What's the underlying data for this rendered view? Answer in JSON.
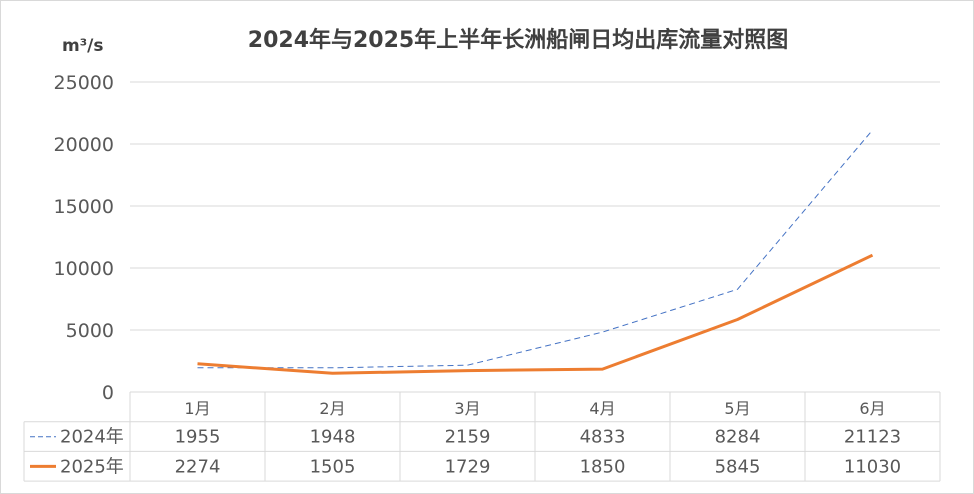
{
  "chart_data": {
    "type": "line",
    "title": "2024年与2025年上半年长洲船闸日均出库流量对照图",
    "ylabel": "m³/s",
    "ylim": [
      0,
      25000
    ],
    "yticks": [
      "0",
      "5000",
      "10000",
      "15000",
      "20000",
      "25000"
    ],
    "categories": [
      "1月",
      "2月",
      "3月",
      "4月",
      "5月",
      "6月"
    ],
    "grid": true,
    "legend_position": "data-table",
    "series": [
      {
        "name": "2024年",
        "values": [
          1955,
          1948,
          2159,
          4833,
          8284,
          21123
        ],
        "color": "#4472c4",
        "style": "dashed"
      },
      {
        "name": "2025年",
        "values": [
          2274,
          1505,
          1729,
          1850,
          5845,
          11030
        ],
        "color": "#ed7d31",
        "style": "solid"
      }
    ]
  }
}
